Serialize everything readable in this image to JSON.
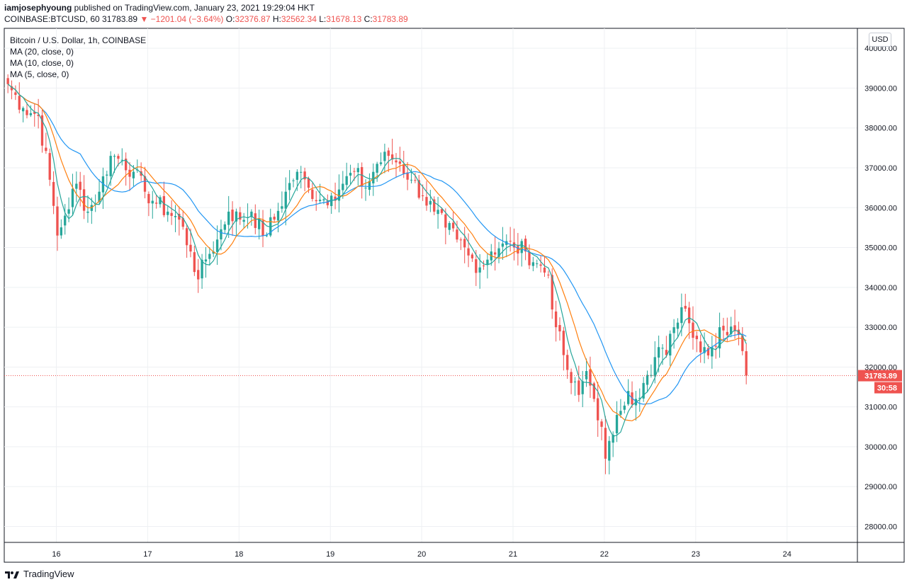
{
  "header": {
    "user": "iamjosephyoung",
    "published": " published on TradingView.com, January 23, 2021 19:29:04 HKT",
    "symbol_line": "COINBASE:BTCUSD, 60",
    "last": "31783.89",
    "change": "▼ −1201.04 (−3.64%)",
    "o_label": "O:",
    "o_val": "32376.87",
    "h_label": "H:",
    "h_val": "32562.34",
    "l_label": "L:",
    "l_val": "31678.13",
    "c_label": "C:",
    "c_val": "31783.89"
  },
  "legend": {
    "title": "Bitcoin / U.S. Dollar, 1h, COINBASE",
    "ma20": "MA (20, close, 0)",
    "ma10": "MA (10, close, 0)",
    "ma5": "MA (5, close, 0)"
  },
  "currency_button": "USD",
  "footer": {
    "brand": "TradingView"
  },
  "colors": {
    "up": "#26a69a",
    "down": "#ef5350",
    "ma20": "#2196f3",
    "ma10": "#ff7f0e",
    "ma5": "#26a69a",
    "grid": "#eef0f3"
  },
  "chart_data": {
    "type": "candlestick",
    "title": "Bitcoin / U.S. Dollar, 1h, COINBASE",
    "ylim": [
      27600,
      40500
    ],
    "y_ticks": [
      28000,
      29000,
      30000,
      31000,
      32000,
      33000,
      34000,
      35000,
      36000,
      37000,
      38000,
      39000,
      40000
    ],
    "x_ticks": [
      {
        "label": "16",
        "day": 16
      },
      {
        "label": "17",
        "day": 17
      },
      {
        "label": "18",
        "day": 18
      },
      {
        "label": "19",
        "day": 19
      },
      {
        "label": "20",
        "day": 20
      },
      {
        "label": "21",
        "day": 21
      },
      {
        "label": "22",
        "day": 22
      },
      {
        "label": "23",
        "day": 23
      },
      {
        "label": "24",
        "day": 24
      }
    ],
    "x_range_days": [
      15.43,
      24.77
    ],
    "last_price_label": "31783.89",
    "countdown_label": "30:58",
    "close_keypoints": [
      [
        0,
        39100
      ],
      [
        4,
        38500
      ],
      [
        8,
        38300
      ],
      [
        11,
        36700
      ],
      [
        13,
        35300
      ],
      [
        15,
        35800
      ],
      [
        18,
        36600
      ],
      [
        21,
        35900
      ],
      [
        24,
        36400
      ],
      [
        27,
        37300
      ],
      [
        30,
        37200
      ],
      [
        33,
        36900
      ],
      [
        36,
        36400
      ],
      [
        39,
        36100
      ],
      [
        42,
        35900
      ],
      [
        45,
        35700
      ],
      [
        48,
        34900
      ],
      [
        50,
        34200
      ],
      [
        52,
        34700
      ],
      [
        55,
        35200
      ],
      [
        58,
        35900
      ],
      [
        61,
        35700
      ],
      [
        64,
        35900
      ],
      [
        67,
        35300
      ],
      [
        70,
        35700
      ],
      [
        73,
        36400
      ],
      [
        76,
        36900
      ],
      [
        79,
        36500
      ],
      [
        82,
        36200
      ],
      [
        85,
        36300
      ],
      [
        88,
        36600
      ],
      [
        91,
        36900
      ],
      [
        94,
        36500
      ],
      [
        97,
        37100
      ],
      [
        100,
        37300
      ],
      [
        103,
        37100
      ],
      [
        106,
        36700
      ],
      [
        109,
        36300
      ],
      [
        112,
        35900
      ],
      [
        115,
        35500
      ],
      [
        118,
        35200
      ],
      [
        121,
        34800
      ],
      [
        124,
        34500
      ],
      [
        127,
        34900
      ],
      [
        130,
        35100
      ],
      [
        133,
        35000
      ],
      [
        136,
        34900
      ],
      [
        139,
        34600
      ],
      [
        142,
        34300
      ],
      [
        144,
        33000
      ],
      [
        146,
        32300
      ],
      [
        148,
        31600
      ],
      [
        150,
        31300
      ],
      [
        152,
        31900
      ],
      [
        154,
        31200
      ],
      [
        156,
        30500
      ],
      [
        157,
        29700
      ],
      [
        159,
        30300
      ],
      [
        161,
        30900
      ],
      [
        163,
        31400
      ],
      [
        165,
        31200
      ],
      [
        167,
        31600
      ],
      [
        169,
        31800
      ],
      [
        171,
        32500
      ],
      [
        173,
        32300
      ],
      [
        175,
        33000
      ],
      [
        177,
        33500
      ],
      [
        179,
        33100
      ],
      [
        181,
        32700
      ],
      [
        183,
        32500
      ],
      [
        185,
        32500
      ],
      [
        187,
        33000
      ],
      [
        189,
        32800
      ],
      [
        191,
        32900
      ],
      [
        193,
        32400
      ],
      [
        194,
        31783.89
      ]
    ]
  }
}
